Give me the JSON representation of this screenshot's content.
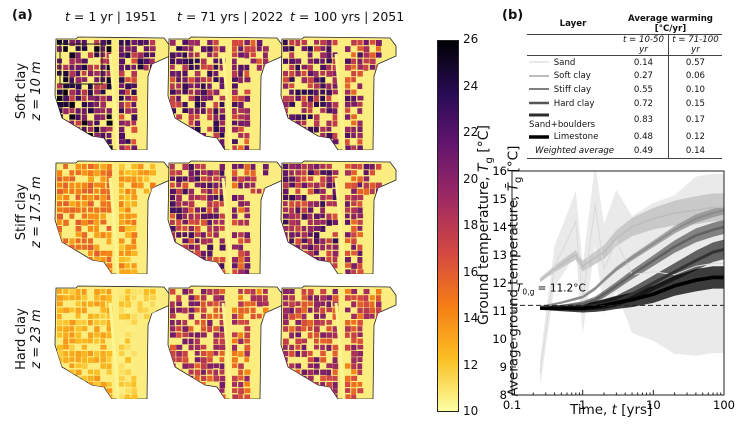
{
  "panel_a_label": "(a)",
  "panel_b_label": "(b)",
  "columns": [
    "t = 1 yr | 1951",
    "t = 71 yrs | 2022",
    "t = 100 yrs | 2051"
  ],
  "column_parts": [
    {
      "t": "t",
      "rest": " = 1 yr | 1951"
    },
    {
      "t": "t",
      "rest": " = 71 yrs | 2022"
    },
    {
      "t": "t",
      "rest": " = 100 yrs | 2051"
    }
  ],
  "rows": [
    {
      "layer": "Soft clay",
      "depth": "z = 10 m"
    },
    {
      "layer": "Stiff clay",
      "depth": "z = 17.5 m"
    },
    {
      "layer": "Hard clay",
      "depth": "z = 23 m"
    }
  ],
  "map_levels": [
    [
      0.85,
      0.75,
      0.75
    ],
    [
      0.35,
      0.7,
      0.72
    ],
    [
      0.2,
      0.6,
      0.62
    ]
  ],
  "colorbar": {
    "label": "Ground temperature, T_g [°C]",
    "label_main": "Ground temperature, ",
    "label_sym": "T",
    "label_sub": "g",
    "label_unit": " [°C]",
    "ticks": [
      "26",
      "24",
      "22",
      "20",
      "18",
      "16",
      "14",
      "12",
      "10"
    ],
    "min": 10,
    "max": 26,
    "colors": [
      "#fcffa4",
      "#fbbe23",
      "#f57d15",
      "#d44842",
      "#9f2a63",
      "#65156e",
      "#280b54",
      "#000004"
    ]
  },
  "table": {
    "header_layer": "Layer",
    "header_warming": "Average warming [°C/yr]",
    "sub_headers": [
      "t = 10-50 yr",
      "t = 71-100 yr"
    ],
    "rows": [
      {
        "layer": "Sand",
        "a": "0.14",
        "b": "0.57",
        "color": "#d0d0d0",
        "width": 1
      },
      {
        "layer": "Soft clay",
        "a": "0.27",
        "b": "0.06",
        "color": "#a9a9a9",
        "width": 1.5
      },
      {
        "layer": "Stiff clay",
        "a": "0.55",
        "b": "0.10",
        "color": "#7f7f7f",
        "width": 2
      },
      {
        "layer": "Hard clay",
        "a": "0.72",
        "b": "0.15",
        "color": "#555555",
        "width": 2.5
      },
      {
        "layer": "Sand+boulders",
        "a": "0.83",
        "b": "0.17",
        "color": "#2c2c2c",
        "width": 3
      },
      {
        "layer": "Limestone",
        "a": "0.48",
        "b": "0.12",
        "color": "#000000",
        "width": 3.6
      }
    ],
    "weighted": {
      "layer": "Weighted average",
      "a": "0.49",
      "b": "0.14"
    }
  },
  "chart_data": {
    "type": "line",
    "xlabel": "Time, t [yrs]",
    "xlabel_main": "Time, ",
    "xlabel_sym": "t",
    "xlabel_unit": " [yrs]",
    "ylabel": "Average ground temperature, T̄_g [°C]",
    "ylabel_main": "Average ground temperature, ",
    "ylabel_sym": "T̄",
    "ylabel_sub": "g",
    "ylabel_unit": " [°C]",
    "xscale": "log",
    "xlim": [
      0.1,
      100
    ],
    "ylim": [
      8,
      16
    ],
    "xticks": [
      "0.1",
      "1",
      "10",
      "100"
    ],
    "yticks": [
      "8",
      "9",
      "10",
      "11",
      "12",
      "13",
      "14",
      "15",
      "16"
    ],
    "reference_line": {
      "y": 11.2,
      "label": "T_0,g = 11.2°C",
      "label_sym": "T",
      "label_sub": "0,g",
      "label_rest": " = 11.2°C"
    },
    "series": [
      {
        "name": "Sand",
        "color": "#d9d9d9",
        "band": 3.2,
        "x": [
          0.25,
          0.4,
          0.6,
          0.8,
          1,
          1.5,
          2,
          3,
          5,
          10,
          20,
          40,
          70,
          100
        ],
        "y": [
          8.8,
          12.6,
          13.5,
          14.2,
          11.4,
          14.8,
          12.5,
          13.5,
          12.3,
          12.4,
          12.3,
          12.6,
          12.7,
          12.7
        ]
      },
      {
        "name": "Soft clay",
        "color": "#bdbdbd",
        "band": 0.5,
        "x": [
          0.25,
          0.4,
          0.6,
          0.8,
          1,
          1.5,
          2,
          3,
          5,
          10,
          20,
          40,
          70,
          100
        ],
        "y": [
          12.1,
          12.5,
          12.8,
          13.0,
          12.6,
          12.9,
          13.1,
          13.6,
          14.0,
          14.3,
          14.5,
          14.6,
          14.7,
          14.7
        ]
      },
      {
        "name": "Stiff clay",
        "color": "#8c8c8c",
        "band": 0.15,
        "x": [
          0.25,
          0.5,
          1,
          1.5,
          2,
          3,
          5,
          10,
          20,
          40,
          70,
          100
        ],
        "y": [
          11.15,
          11.3,
          11.5,
          11.8,
          12.1,
          12.5,
          12.9,
          13.4,
          13.9,
          14.3,
          14.5,
          14.6
        ]
      },
      {
        "name": "Hard clay",
        "color": "#606060",
        "band": 0.25,
        "x": [
          0.25,
          0.5,
          1,
          1.5,
          2,
          3,
          5,
          10,
          20,
          40,
          70,
          100
        ],
        "y": [
          11.1,
          11.15,
          11.25,
          11.4,
          11.6,
          11.9,
          12.3,
          12.8,
          13.3,
          13.7,
          13.9,
          14.0
        ]
      },
      {
        "name": "Sand+boulders",
        "color": "#333333",
        "band": 0.35,
        "x": [
          0.25,
          0.5,
          1,
          1.5,
          2,
          3,
          5,
          10,
          20,
          40,
          70,
          100
        ],
        "y": [
          11.1,
          11.12,
          11.15,
          11.2,
          11.25,
          11.35,
          11.6,
          12.0,
          12.4,
          12.8,
          13.1,
          13.2
        ]
      },
      {
        "name": "Limestone",
        "color": "#000000",
        "band": 0.4,
        "x": [
          0.25,
          0.5,
          1,
          1.5,
          2,
          3,
          5,
          10,
          20,
          40,
          70,
          100
        ],
        "y": [
          11.1,
          11.1,
          11.1,
          11.15,
          11.2,
          11.3,
          11.4,
          11.6,
          11.9,
          12.1,
          12.2,
          12.2
        ]
      }
    ]
  }
}
